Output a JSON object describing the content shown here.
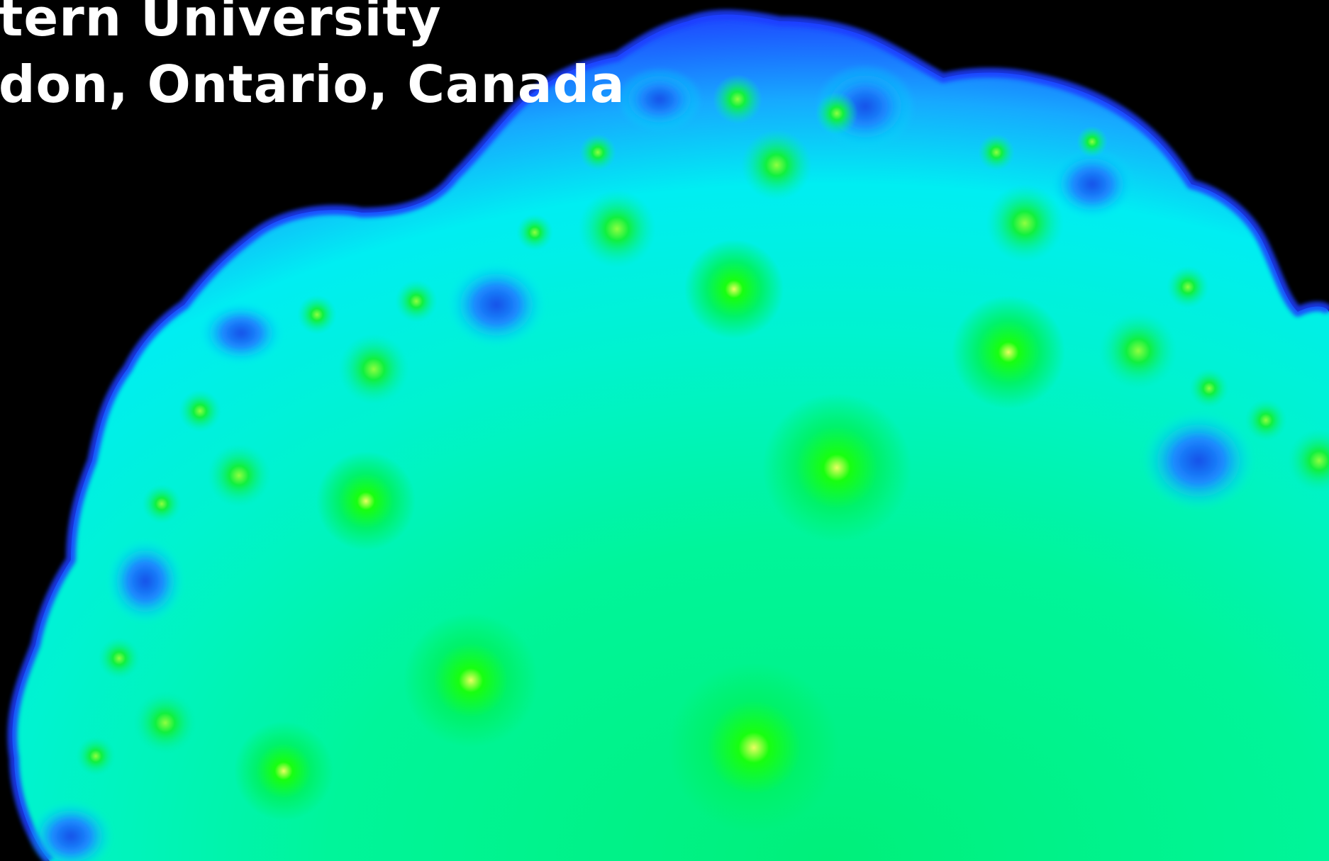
{
  "caption": {
    "line1": "tern University",
    "line2": "don, Ontario, Canada"
  },
  "colors": {
    "background": "#000000",
    "edge_blue": "#1a3cff",
    "mid_blue": "#1a7dff",
    "cyan": "#00f2f0",
    "aqua_green": "#00f5b0",
    "green": "#00f07a",
    "bright_green": "#18ff10",
    "yellow_core": "#e8ff60",
    "text": "#ffffff"
  },
  "image": {
    "subject": "escape-time fractal (Julia set style) rendered in blue-cyan-green gradient on black"
  }
}
